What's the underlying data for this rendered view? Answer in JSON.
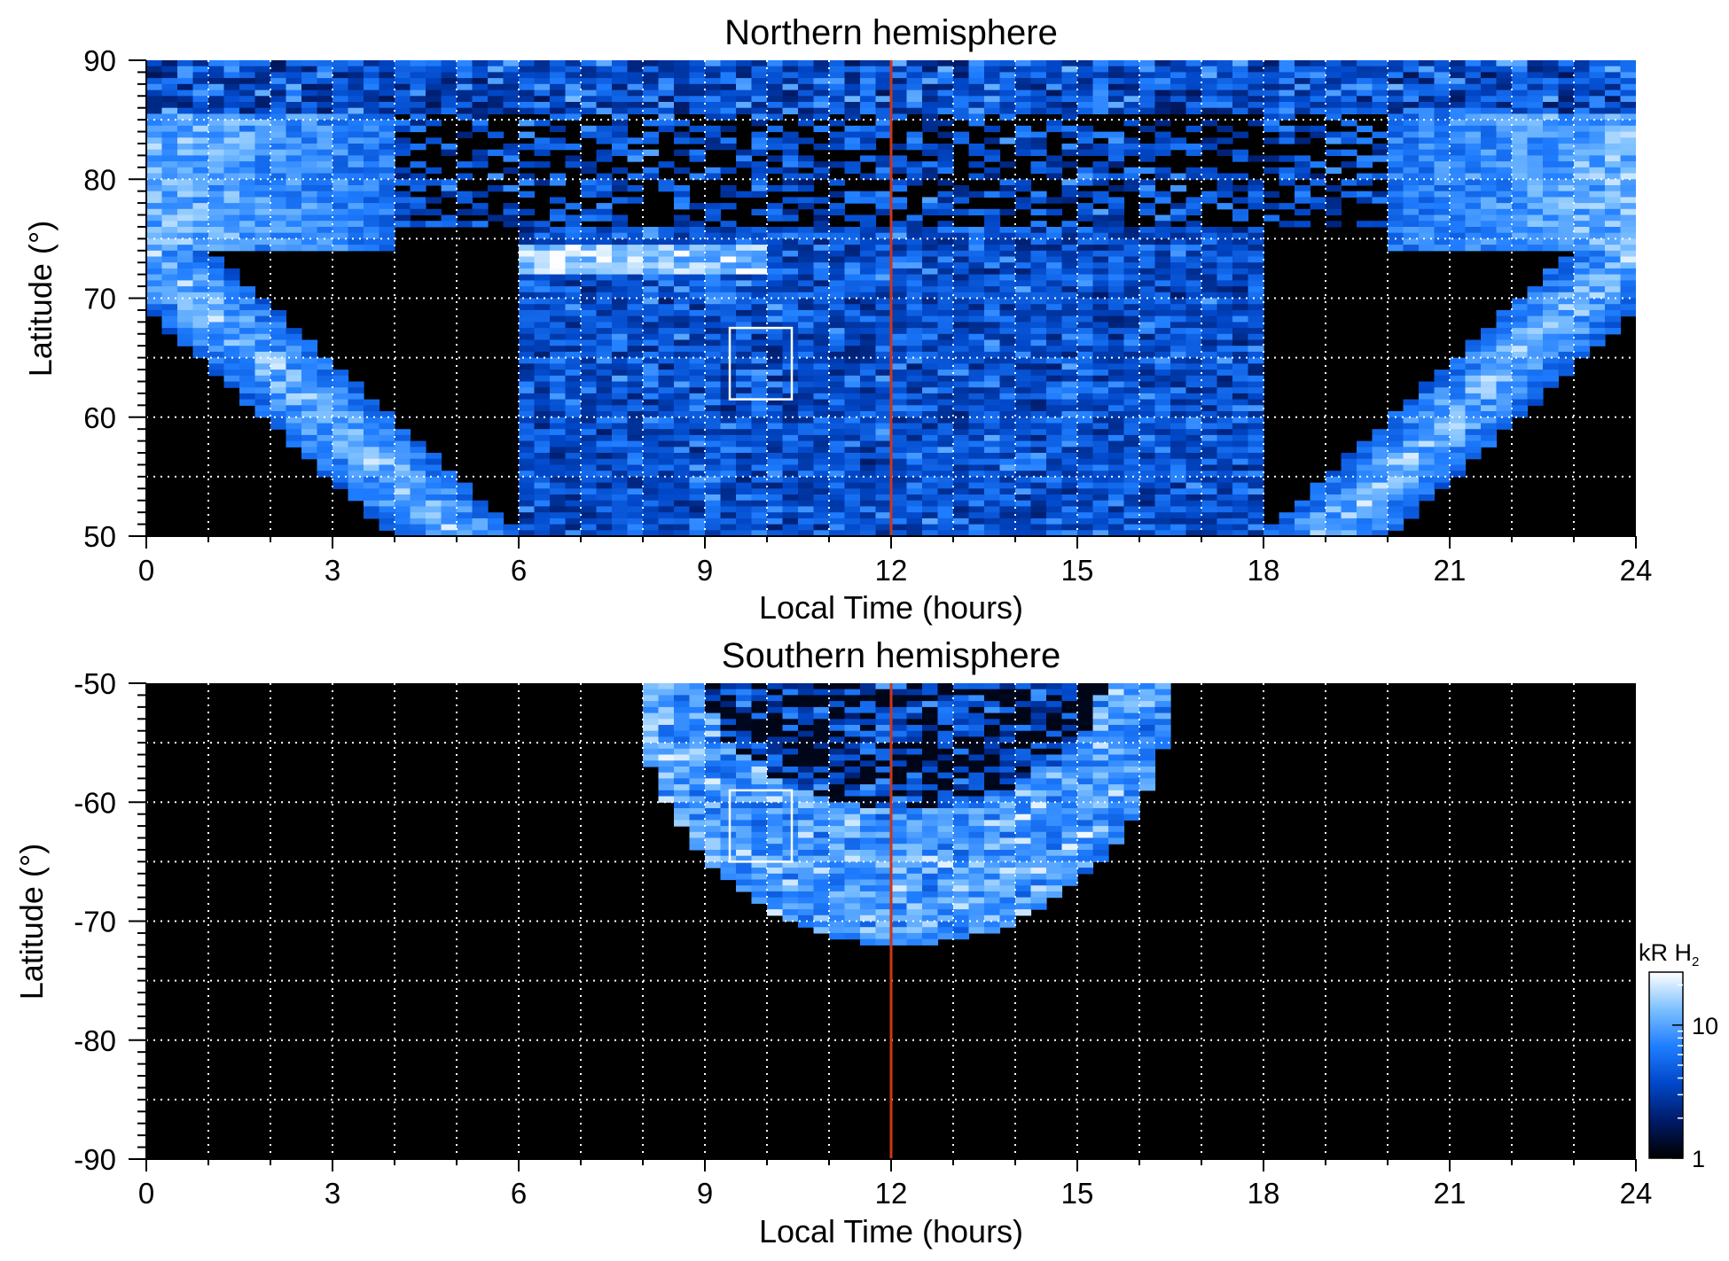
{
  "chart_data": [
    {
      "type": "heatmap",
      "title": "Northern hemisphere",
      "xlabel": "Local Time (hours)",
      "ylabel": "Latitude (°)",
      "xlim": [
        0,
        24
      ],
      "ylim": [
        50,
        90
      ],
      "xticks": [
        "0",
        "3",
        "6",
        "9",
        "12",
        "15",
        "18",
        "21",
        "24"
      ],
      "yticks": [
        "50",
        "60",
        "70",
        "80",
        "90"
      ],
      "grid_x_step": 1,
      "grid_y_step": 5,
      "grid": true,
      "marker_line_x": 12,
      "highlight_box": {
        "x": [
          9.4,
          10.4
        ],
        "y": [
          61.5,
          67.5
        ]
      },
      "features": [
        {
          "name": "dawn auroral oval",
          "from": [
            0,
            74
          ],
          "to": [
            5,
            50
          ]
        },
        {
          "name": "dusk auroral oval",
          "from": [
            24,
            74
          ],
          "to": [
            19,
            50
          ]
        },
        {
          "name": "polar cap boundary",
          "lat_max": 85.5
        }
      ]
    },
    {
      "type": "heatmap",
      "title": "Southern hemisphere",
      "xlabel": "Local Time (hours)",
      "ylabel": "Latitude (°)",
      "xlim": [
        0,
        24
      ],
      "ylim": [
        -90,
        -50
      ],
      "xticks": [
        "0",
        "3",
        "6",
        "9",
        "12",
        "15",
        "18",
        "21",
        "24"
      ],
      "yticks": [
        "-90",
        "-80",
        "-70",
        "-60",
        "-50"
      ],
      "grid_x_step": 1,
      "grid_y_step": 5,
      "grid": true,
      "marker_line_x": 12,
      "highlight_box": {
        "x": [
          9.4,
          10.4
        ],
        "y": [
          -65,
          -59
        ]
      },
      "features": [
        {
          "name": "dayside auroral arc",
          "x_range": [
            8,
            16.5
          ],
          "lat_min": -72
        }
      ]
    }
  ],
  "colorbar": {
    "label": "kR H",
    "label_subscript": "2",
    "ticks": [
      "1",
      "10"
    ],
    "scale": "log",
    "range": [
      1,
      25
    ],
    "colors": [
      "#000000",
      "#001a66",
      "#0047c8",
      "#1f7dff",
      "#7cc0ff",
      "#ffffff"
    ]
  },
  "colors": {
    "marker_line": "#c8381c",
    "grid": "#ffffff",
    "background": "#000000",
    "box": "#ffffff"
  }
}
